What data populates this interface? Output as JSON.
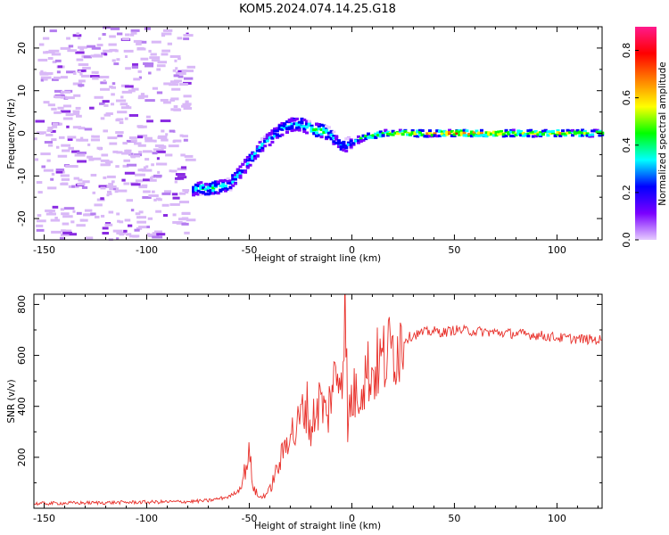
{
  "title": "KOM5.2024.074.14.25.G18",
  "chart_data": [
    {
      "type": "heatmap",
      "xlabel": "Height of straight line (km)",
      "ylabel": "Frequency (Hz)",
      "xlim": [
        -155,
        122
      ],
      "ylim": [
        -25,
        25
      ],
      "xticks": [
        -150,
        -100,
        -50,
        0,
        50,
        100
      ],
      "yticks": [
        -20,
        -10,
        0,
        10,
        20
      ],
      "colorbar": {
        "label": "Normalized spectral amplitude",
        "range": [
          0.0,
          0.9
        ],
        "ticks": [
          0.0,
          0.2,
          0.4,
          0.6,
          0.8
        ],
        "colormap": [
          "#e6ccff",
          "#7a00ff",
          "#0000ff",
          "#00ffff",
          "#00ff00",
          "#ffff00",
          "#ff8000",
          "#ff0000",
          "#ff1a8c"
        ]
      },
      "ridge": {
        "x": [
          -78,
          -70,
          -60,
          -55,
          -50,
          -45,
          -40,
          -35,
          -30,
          -25,
          -20,
          -15,
          -12,
          -8,
          -5,
          0,
          5,
          10,
          15,
          20,
          30,
          40,
          50,
          60,
          80,
          100,
          122
        ],
        "y": [
          -13,
          -13,
          -12,
          -9,
          -6,
          -3,
          -1,
          1,
          2,
          2,
          1,
          0.5,
          0,
          -2,
          -3,
          -2,
          -1,
          -0.5,
          0,
          0,
          0,
          0,
          0,
          0,
          0,
          0,
          0
        ],
        "amplitude": [
          0.3,
          0.4,
          0.35,
          0.3,
          0.3,
          0.3,
          0.3,
          0.35,
          0.3,
          0.35,
          0.45,
          0.5,
          0.3,
          0.25,
          0.3,
          0.3,
          0.4,
          0.45,
          0.5,
          0.55,
          0.6,
          0.65,
          0.75,
          0.7,
          0.55,
          0.6,
          0.5
        ]
      },
      "noise_region": {
        "x": [
          -155,
          -80
        ],
        "y": [
          -25,
          25
        ],
        "amplitude": 0.05
      }
    },
    {
      "type": "line",
      "xlabel": "Height of straight line (km)",
      "ylabel": "SNR (v/v)",
      "xlim": [
        -155,
        122
      ],
      "ylim": [
        0,
        840
      ],
      "xticks": [
        -150,
        -100,
        -50,
        0,
        50,
        100
      ],
      "yticks": [
        200,
        400,
        600,
        800
      ],
      "series": [
        {
          "color": "#e8302a",
          "x": [
            -155,
            -140,
            -120,
            -100,
            -80,
            -70,
            -60,
            -55,
            -52,
            -50,
            -48,
            -45,
            -42,
            -40,
            -38,
            -35,
            -32,
            -30,
            -28,
            -25,
            -22,
            -20,
            -18,
            -15,
            -12,
            -10,
            -8,
            -5,
            -4,
            -3,
            -2,
            -1,
            0,
            3,
            5,
            8,
            10,
            12,
            15,
            18,
            20,
            25,
            30,
            35,
            40,
            45,
            50,
            60,
            70,
            80,
            90,
            100,
            110,
            122
          ],
          "y": [
            18,
            20,
            22,
            24,
            26,
            30,
            45,
            70,
            150,
            215,
            80,
            40,
            55,
            70,
            120,
            180,
            260,
            320,
            280,
            360,
            410,
            300,
            380,
            430,
            340,
            480,
            500,
            560,
            640,
            840,
            260,
            420,
            430,
            460,
            500,
            540,
            530,
            560,
            580,
            610,
            630,
            660,
            680,
            690,
            695,
            690,
            700,
            695,
            690,
            685,
            680,
            670,
            665,
            660
          ]
        }
      ]
    }
  ]
}
